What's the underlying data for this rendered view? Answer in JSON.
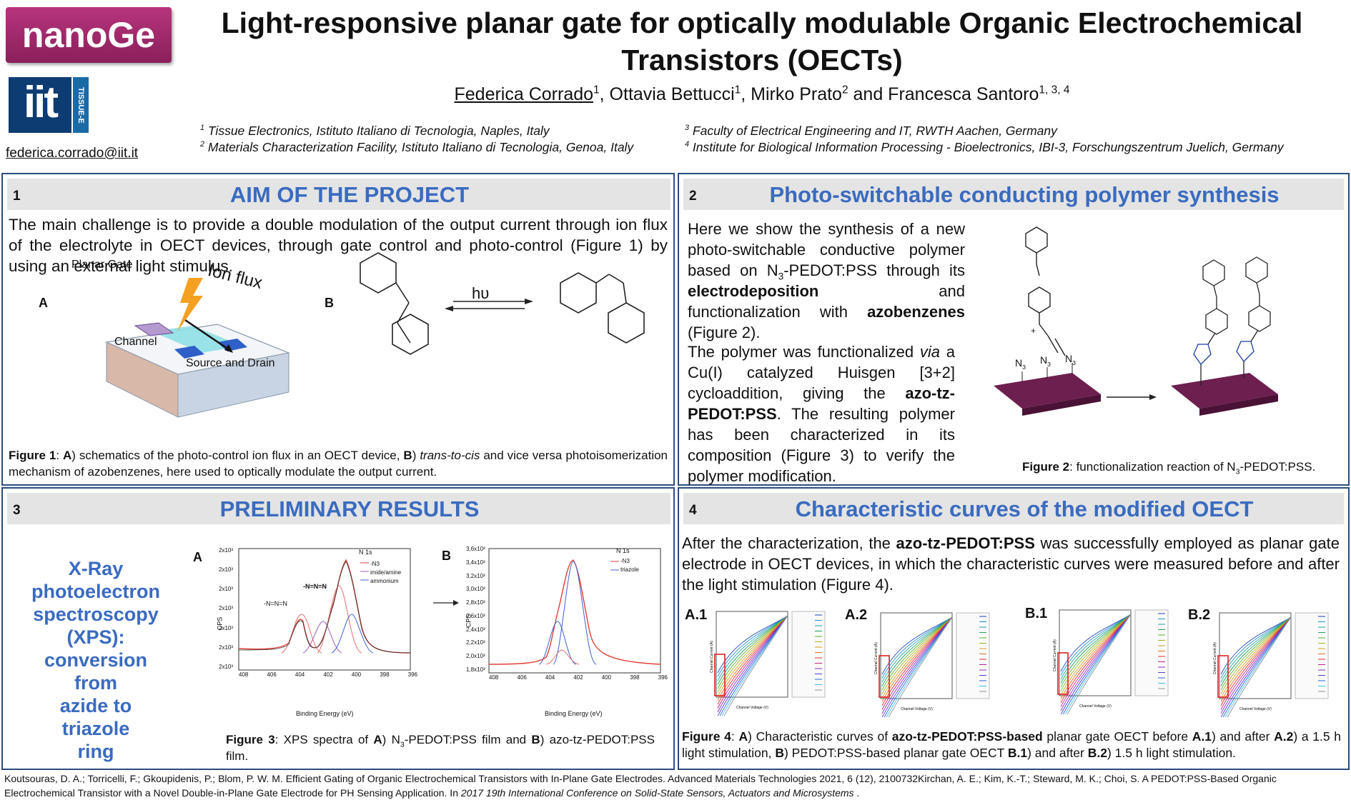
{
  "header": {
    "logo_nanoge": "nanoGe",
    "logo_iit": "iit",
    "logo_iit_side": "TISSUE-E",
    "email": "federica.corrado@iit.it",
    "title_line1": "Light-responsive planar gate for optically modulable Organic Electrochemical",
    "title_line2": "Transistors (OECTs)",
    "authors": [
      {
        "name": "Federica Corrado",
        "sup": "1",
        "underline": true
      },
      {
        "name": ", Ottavia Bettucci",
        "sup": "1"
      },
      {
        "name": ", Mirko Prato",
        "sup": "2"
      },
      {
        "name": " and Francesca Santoro",
        "sup": "1, 3, 4"
      }
    ],
    "affiliations_left": [
      {
        "sup": "1",
        "text": " Tissue Electronics, Istituto Italiano di Tecnologia, Naples, Italy"
      },
      {
        "sup": "2",
        "text": " Materials Characterization Facility, Istituto Italiano di Tecnologia, Genoa, Italy"
      }
    ],
    "affiliations_right": [
      {
        "sup": "3",
        "text": " Faculty of Electrical Engineering and IT, RWTH Aachen, Germany"
      },
      {
        "sup": "4",
        "text": " Institute for Biological Information Processing - Bioelectronics, IBI-3, Forschungszentrum Juelich, Germany"
      }
    ]
  },
  "section1": {
    "number": "1",
    "title": "AIM OF THE PROJECT",
    "text": "The main challenge is to provide a double modulation of the output current through ion flux of the electrolyte in OECT devices, through gate control and photo-control (Figure 1) by using an external light stimulus.",
    "label_a": "A",
    "label_b": "B",
    "schem_planar_gate": "Planar Gate",
    "schem_ion_flux": "Ion flux",
    "schem_channel": "Channel",
    "schem_source_drain": "Source and Drain",
    "hv": "hυ",
    "caption_bold": "Figure 1",
    "caption_a": "A",
    "caption_text1": ") schematics of the photo-control ion flux in an OECT device, ",
    "caption_b": "B",
    "caption_text2": ") ",
    "caption_italic": "trans-to-cis",
    "caption_text3": " and vice versa photoisomerization mechanism of azobenzenes, here used to optically modulate the output current."
  },
  "section2": {
    "number": "2",
    "title": "Photo-switchable conducting polymer synthesis",
    "p1_a": "Here we show the synthesis of a new photo-switchable conductive polymer based on N",
    "p1_sub": "3",
    "p1_b": "-PEDOT:PSS through its ",
    "p1_bold1": "electrodeposition",
    "p1_c": " and functionalization with ",
    "p1_bold2": "azobenzenes",
    "p1_d": " (Figure 2).",
    "p2_a": "The polymer was functionalized ",
    "p2_italic": "via",
    "p2_b": " a Cu(I) catalyzed Huisgen [3+2] cycloaddition, giving the ",
    "p2_bold": "azo-tz-PEDOT:PSS",
    "p2_c": ". The resulting polymer has been characterized in its composition (Figure 3) to verify the polymer modification.",
    "n3": "N",
    "n3_sub": "3",
    "plus": "+",
    "caption_bold": "Figure 2",
    "caption_text": ": functionalization reaction of N",
    "caption_sub": "3",
    "caption_end": "-PEDOT:PSS."
  },
  "section3": {
    "number": "3",
    "title": "PRELIMINARY RESULTS",
    "xps_lines": [
      "X-Ray",
      "photoelectron",
      "spectroscopy",
      "(XPS):",
      "conversion from",
      "azide to triazole",
      "ring"
    ],
    "label_a": "A",
    "label_b": "B",
    "caption_bold": "Figure 3",
    "caption_text1": ": XPS spectra of ",
    "caption_a": "A",
    "caption_text2": ") N",
    "caption_sub": "3",
    "caption_text3": "-PEDOT:PSS film and ",
    "caption_b": "B",
    "caption_text4": ") azo-tz-PEDOT:PSS film.",
    "plot_a": {
      "title": "N 1s",
      "legend": [
        "-N3",
        "imide/amine",
        "ammonium"
      ],
      "xlabel": "Binding Energy (eV)",
      "ylabel": "CPS",
      "xticks": [
        "408",
        "406",
        "404",
        "402",
        "400",
        "398",
        "396"
      ],
      "yticks": [
        "2x10³",
        "2x10³",
        "2x10³",
        "2x10³",
        "2x10³",
        "2x10³",
        "2x10³"
      ],
      "annot1": "-N=N=N",
      "annot2": "-N=N=N"
    },
    "plot_b": {
      "title": "N 1s",
      "legend": [
        "-N3",
        "triazole"
      ],
      "xlabel": "Binding Energy (eV)",
      "ylabel": "CPS",
      "xticks": [
        "408",
        "406",
        "404",
        "402",
        "400",
        "398",
        "396"
      ],
      "yticks": [
        "3,6x10³",
        "3,4x10³",
        "3,2x10³",
        "3,0x10³",
        "2,8x10³",
        "2,6x10³",
        "2,4x10³",
        "2,2x10³",
        "2,0x10³",
        "1,8x10³"
      ]
    }
  },
  "section4": {
    "number": "4",
    "title": "Characteristic curves of the modified OECT",
    "text_a": "After the characterization, the ",
    "text_bold": "azo-tz-PEDOT:PSS",
    "text_b": " was successfully employed as planar gate electrode in OECT devices, in which the characteristic curves were measured before and after the light stimulation (Figure 4).",
    "plot_labels": [
      "A.1",
      "A.2",
      "B.1",
      "B.2"
    ],
    "plot_xlabel": "Channel Voltage (V)",
    "plot_ylabel": "Channel Current (A)",
    "caption_bold": "Figure 4",
    "caption_t1": ": ",
    "caption_a": "A",
    "caption_t2": ") Characteristic curves of ",
    "caption_b1": "azo-tz-PEDOT:PSS-based",
    "caption_t3": " planar gate OECT before ",
    "caption_a1": "A.1",
    "caption_t4": ") and after ",
    "caption_a2": "A.2",
    "caption_t5": ") a 1.5 h light stimulation, ",
    "caption_bb": "B",
    "caption_t6": ") PEDOT:PSS-based planar gate OECT ",
    "caption_bb1": "B.1",
    "caption_t7": ") and after ",
    "caption_bb2": "B.2",
    "caption_t8": ") 1.5 h light stimulation."
  },
  "references": {
    "ref1": "Koutsouras, D. A.; Torricelli, F.; Gkoupidenis, P.; Blom, P. W. M. Efficient Gating of Organic Electrochemical Transistors with In-Plane Gate Electrodes. Advanced Materials Technologies 2021, 6 (12), 2100732",
    "ref2_a": "Kirchan, A. E.; Kim, K.-T.; Steward, M. K.; Choi, S. A PEDOT:PSS-Based Organic Electrochemical Transistor with a Novel Double-in-Plane Gate Electrode for PH Sensing Application. In ",
    "ref2_italic": "2017 19th International Conference on Solid-State Sensors, Actuators and Microsystems",
    "ref2_end": " ."
  },
  "colors": {
    "accent_blue": "#3a6bc0",
    "panel_border": "#2b4c7e",
    "header_gray": "#e4e4e4",
    "nanoge_magenta": "#9a2464",
    "substrate_purple": "#6d1f4f"
  }
}
